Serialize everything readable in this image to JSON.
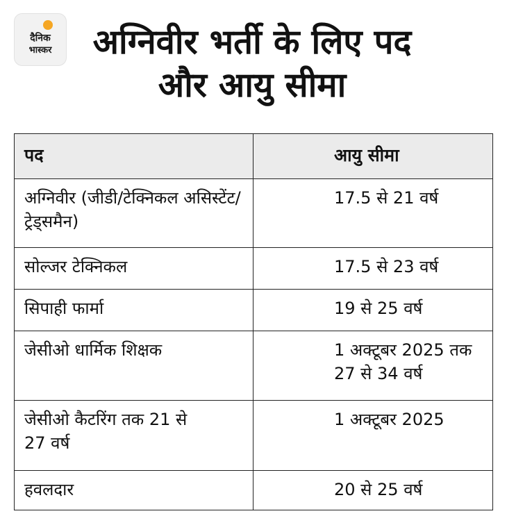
{
  "logo": {
    "line1": "दैनिक",
    "line2": "भास्कर"
  },
  "title": "अग्निवीर भर्ती के लिए पद और आयु सीमा",
  "table": {
    "headers": [
      "पद",
      "आयु सीमा"
    ],
    "rows": [
      {
        "post": "अग्निवीर (जीडी/टेक्निकल असिस्टेंट/ट्रेड्समैन)",
        "age": "17.5 से 21 वर्ष"
      },
      {
        "post": "सोल्जर टेक्निकल",
        "age": "17.5 से 23 वर्ष"
      },
      {
        "post": "सिपाही फार्मा",
        "age": "19 से 25 वर्ष"
      },
      {
        "post": "जेसीओ धार्मिक शिक्षक",
        "age": "1 अक्टूबर 2025 तक 27 से 34 वर्ष"
      },
      {
        "post": "जेसीओ कैटरिंग तक 21 से 27 वर्ष",
        "age": "1 अक्टूबर 2025"
      },
      {
        "post": "हवलदार",
        "age": "20 से 25 वर्ष"
      }
    ]
  }
}
